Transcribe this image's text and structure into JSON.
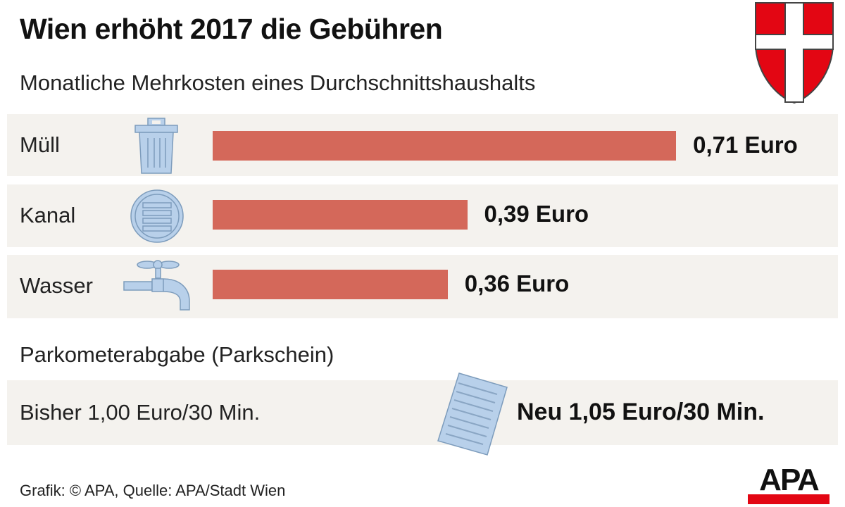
{
  "title": "Wien erhöht 2017 die Gebühren",
  "subtitle": "Monatliche Mehrkosten eines Durchschnittshaushalts",
  "chart_data": {
    "type": "bar",
    "orientation": "horizontal",
    "title": "Wien erhöht 2017 die Gebühren",
    "subtitle": "Monatliche Mehrkosten eines Durchschnittshaushalts",
    "categories": [
      "Müll",
      "Kanal",
      "Wasser"
    ],
    "values": [
      0.71,
      0.39,
      0.36
    ],
    "value_labels": [
      "0,71 Euro",
      "0,39 Euro",
      "0,36 Euro"
    ],
    "icons": [
      "trash-can-icon",
      "manhole-cover-icon",
      "water-tap-icon"
    ],
    "unit": "Euro",
    "bar_color": "#d4685a"
  },
  "parking": {
    "title": "Parkometerabgabe (Parkschein)",
    "old": "Bisher 1,00 Euro/30 Min.",
    "new": "Neu 1,05 Euro/30 Min."
  },
  "source": "Grafik: © APA, Quelle: APA/Stadt Wien",
  "logo": "APA",
  "colors": {
    "bar": "#d4685a",
    "row_bg": "#f4f2ee",
    "icon": "#b8d0ea",
    "shield_red": "#e30613",
    "logo_red": "#e30613"
  }
}
